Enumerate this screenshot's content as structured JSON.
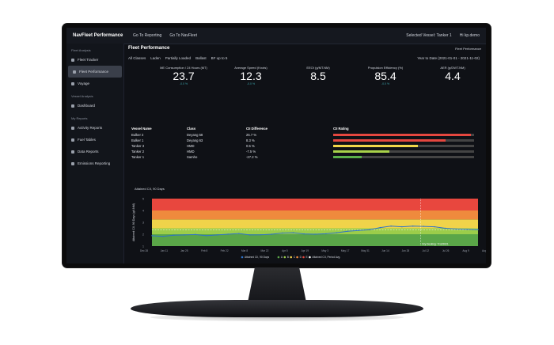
{
  "app": {
    "brand": "NavFleet Performance",
    "nav": [
      "Go To Reporting",
      "Go To NavFleet"
    ],
    "selected_vessel": "Selected Vessel: Tanker 1",
    "user": "Hi kp.demo"
  },
  "sidebar": {
    "sections": [
      {
        "title": "Fleet Analysis",
        "items": [
          "Fleet Tracker",
          "Fleet Performance",
          "Voyage"
        ]
      },
      {
        "title": "Vessel Analysis",
        "items": [
          "Dashboard"
        ]
      },
      {
        "title": "My Reports",
        "items": [
          "Activity Reports",
          "Fuel Tables",
          "Data Reports",
          "Emissions Reporting"
        ]
      }
    ],
    "active_item": "Fleet Performance"
  },
  "page": {
    "title": "Fleet Performance",
    "fleet_perf_link": "Fleet Performance",
    "filters": [
      "All Classes",
      "Laden",
      "Partially Loaded",
      "Ballast",
      "BF up to 5"
    ],
    "daterange": "Year to Date (2021-01-01 - 2021-11-02)"
  },
  "kpis": [
    {
      "label": "ME Consumption / 24 Hours (MT)",
      "value": "23.7",
      "sub": "-0.0 %"
    },
    {
      "label": "Average Speed (Knots)",
      "value": "12.3",
      "sub": "-0.0 %"
    },
    {
      "label": "EEOI (g/MT.NM)",
      "value": "8.5",
      "sub": ""
    },
    {
      "label": "Propulsion Efficiency (%)",
      "value": "85.4",
      "sub": "-0.0 %"
    },
    {
      "label": "AER (g/DWT.NM)",
      "value": "4.4",
      "sub": ""
    }
  ],
  "table": {
    "headers": [
      "Vessel Name",
      "Class",
      "CII Difference",
      "CII Rating"
    ],
    "rows": [
      {
        "name": "Bulker 2",
        "class": "Deyang 58",
        "diff": "25.7 %",
        "rating": 0.98,
        "color": "#e5473f"
      },
      {
        "name": "Bulker 1",
        "class": "Deyang 63",
        "diff": "8.3 %",
        "rating": 0.8,
        "color": "#e5473f"
      },
      {
        "name": "Tanker 3",
        "class": "HMD",
        "diff": "0.5 %",
        "rating": 0.6,
        "color": "#f1d64a"
      },
      {
        "name": "Tanker 2",
        "class": "HMD",
        "diff": "-7.5 %",
        "rating": 0.4,
        "color": "#a8d24a"
      },
      {
        "name": "Tanker 1",
        "class": "Samho",
        "diff": "-27.2 %",
        "rating": 0.2,
        "color": "#5bb04a"
      }
    ]
  },
  "chart_data": {
    "type": "line",
    "title": "Attained CII, 90 Days",
    "ylabel": "Attained CII, 90 Days (g/t.NM)",
    "y_ticks": [
      "1",
      "2",
      "3",
      "4",
      "5"
    ],
    "x_ticks": [
      "Dec 28",
      "Jan 11",
      "Jan 25",
      "Feb 8",
      "Feb 22",
      "Mar 8",
      "Mar 22",
      "Apr 5",
      "Apr 19",
      "May 3",
      "May 17",
      "May 31",
      "Jun 14",
      "Jun 28",
      "Jul 12",
      "Jul 26",
      "Aug 9",
      "Aug 23"
    ],
    "bands": [
      {
        "name": "A",
        "from": 1.2,
        "to": 2.0,
        "color": "#5aa648"
      },
      {
        "name": "B",
        "from": 2.0,
        "to": 2.4,
        "color": "#9ccd4a"
      },
      {
        "name": "C",
        "from": 2.4,
        "to": 3.0,
        "color": "#f0d34a"
      },
      {
        "name": "D",
        "from": 3.0,
        "to": 3.6,
        "color": "#ef8a3d"
      },
      {
        "name": "E",
        "from": 3.6,
        "to": 4.4,
        "color": "#e8473e"
      }
    ],
    "ylim": [
      1.2,
      4.4
    ],
    "series": [
      {
        "name": "Attained CII, 90 Days",
        "color": "#2f73c9",
        "values": [
          1.9,
          1.85,
          1.93,
          1.95,
          1.98,
          1.9,
          1.95,
          2.0,
          2.05,
          1.95,
          1.96,
          2.0,
          2.08,
          2.1,
          2.02,
          2.0,
          2.03,
          2.1,
          2.2,
          2.25,
          2.3,
          2.45,
          2.55,
          2.5,
          2.55,
          2.53,
          2.5,
          2.4,
          2.35,
          2.33,
          2.3
        ]
      }
    ],
    "period_avg": 2.3,
    "legend": [
      "Attained CII, 90 Days",
      "A",
      "B",
      "C",
      "D",
      "E",
      "Attained CII, Period Avg."
    ],
    "annotation": "Dry Docking: 7/12/2021"
  }
}
